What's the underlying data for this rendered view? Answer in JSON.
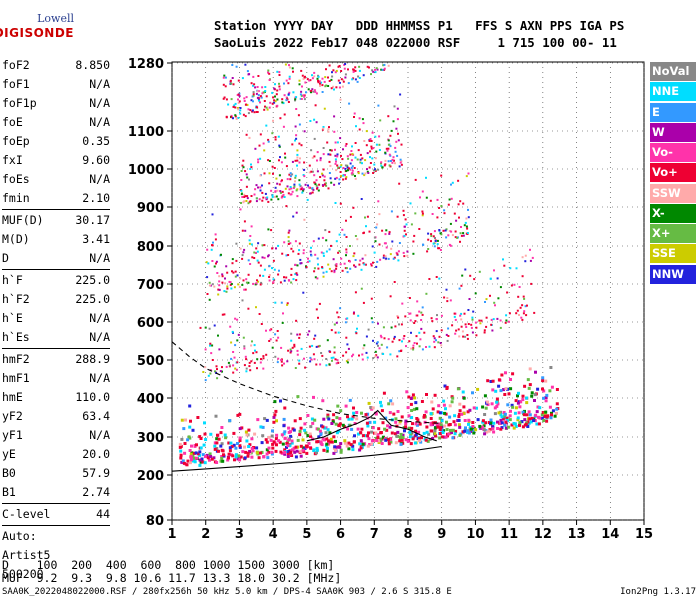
{
  "logo": {
    "line1": "Lowell",
    "line2": "DIGISONDE"
  },
  "header": {
    "labels_line": "Station YYYY DAY   DDD HHMMSS P1   FFS S AXN PPS IGA PS",
    "values_line": "SaoLuis 2022 Feb17 048 022000 RSF     1 715 100 00- 11"
  },
  "params": [
    {
      "name": "foF2",
      "value": "8.850"
    },
    {
      "name": "foF1",
      "value": "N/A"
    },
    {
      "name": "foF1p",
      "value": "N/A"
    },
    {
      "name": "foE",
      "value": "N/A"
    },
    {
      "name": "foEp",
      "value": "0.35"
    },
    {
      "name": "fxI",
      "value": "9.60"
    },
    {
      "name": "foEs",
      "value": "N/A"
    },
    {
      "name": "fmin",
      "value": "2.10"
    },
    {
      "sep": true
    },
    {
      "name": "MUF(D)",
      "value": "30.17"
    },
    {
      "name": "M(D)",
      "value": "3.41"
    },
    {
      "name": "D",
      "value": "N/A"
    },
    {
      "sep": true
    },
    {
      "name": "h`F",
      "value": "225.0"
    },
    {
      "name": "h`F2",
      "value": "225.0"
    },
    {
      "name": "h`E",
      "value": "N/A"
    },
    {
      "name": "h`Es",
      "value": "N/A"
    },
    {
      "sep": true
    },
    {
      "name": "hmF2",
      "value": "288.9"
    },
    {
      "name": "hmF1",
      "value": "N/A"
    },
    {
      "name": "hmE",
      "value": "110.0"
    },
    {
      "name": "yF2",
      "value": "63.4"
    },
    {
      "name": "yF1",
      "value": "N/A"
    },
    {
      "name": "yE",
      "value": "20.0"
    },
    {
      "name": "B0",
      "value": "57.9"
    },
    {
      "name": "B1",
      "value": "2.74"
    },
    {
      "sep": true
    },
    {
      "name": "C-level",
      "value": "44"
    },
    {
      "sep": true
    },
    {
      "text": "Auto:"
    },
    {
      "text": "Artist5"
    },
    {
      "text": "500200"
    }
  ],
  "legend": [
    {
      "label": "NoVal",
      "color": "#888888"
    },
    {
      "label": "NNE",
      "color": "#00ddff"
    },
    {
      "label": "E",
      "color": "#3399ff"
    },
    {
      "label": "W",
      "color": "#aa00aa"
    },
    {
      "label": "Vo-",
      "color": "#ff33aa"
    },
    {
      "label": "Vo+",
      "color": "#ee0033"
    },
    {
      "label": "SSW",
      "color": "#ffaaaa"
    },
    {
      "label": "X-",
      "color": "#008800"
    },
    {
      "label": "X+",
      "color": "#66bb44"
    },
    {
      "label": "SSE",
      "color": "#cccc00"
    },
    {
      "label": "NNW",
      "color": "#2222dd"
    }
  ],
  "footer": {
    "distance_line": "D    100  200  400  600  800 1000 1500 3000 [km]",
    "muf_line": "MUF  9.2  9.3  9.8 10.6 11.7 13.3 18.0 30.2 [MHz]",
    "status_line": "SAA0K_2022048022000.RSF / 280fx256h 50 kHz 5.0 km / DPS-4 SAA0K 903 / 2.6 S 315.8 E",
    "version": "Ion2Png 1.3.17"
  },
  "chart_data": {
    "type": "scatter",
    "x_ticks": [
      1,
      2,
      3,
      4,
      5,
      6,
      7,
      8,
      9,
      10,
      11,
      12,
      13,
      14,
      15
    ],
    "y_ticks": [
      80,
      200,
      300,
      400,
      500,
      600,
      700,
      800,
      900,
      1000,
      1100,
      1280
    ],
    "xlim": [
      1,
      15
    ],
    "ylim": [
      80,
      1280
    ],
    "grid": true,
    "traces": [
      {
        "name": "o-trace",
        "x": [
          1.2,
          2,
          3,
          4,
          5,
          6,
          7,
          8,
          9,
          10,
          11,
          12,
          12.4
        ],
        "y": [
          233,
          240,
          248,
          256,
          263,
          272,
          282,
          293,
          305,
          318,
          332,
          345,
          350
        ]
      },
      {
        "name": "multi-hop-2",
        "x": [
          1.8,
          3,
          4,
          5,
          6,
          7,
          8,
          9,
          10,
          11,
          11.8
        ],
        "y": [
          455,
          468,
          478,
          488,
          497,
          510,
          526,
          545,
          570,
          600,
          630
        ]
      },
      {
        "name": "multi-hop-3",
        "x": [
          2,
          3,
          4,
          5,
          6,
          7,
          8,
          9,
          9.8
        ],
        "y": [
          680,
          693,
          708,
          722,
          738,
          755,
          775,
          800,
          830
        ]
      },
      {
        "name": "multi-hop-4",
        "x": [
          3,
          4,
          5,
          6,
          7,
          7.8
        ],
        "y": [
          910,
          925,
          945,
          970,
          998,
          1020
        ]
      },
      {
        "name": "multi-hop-5",
        "x": [
          2.5,
          3,
          4,
          5,
          6,
          7,
          7.5
        ],
        "y": [
          1130,
          1145,
          1170,
          1195,
          1225,
          1260,
          1280
        ]
      },
      {
        "name": "profile-lower",
        "x": [
          1,
          2,
          3,
          4,
          5,
          6,
          7,
          8,
          9
        ],
        "y": [
          210,
          216,
          222,
          229,
          236,
          244,
          252,
          262,
          275
        ]
      },
      {
        "name": "profile-upper",
        "x": [
          1,
          1.5,
          2,
          3,
          4,
          5,
          6,
          7,
          8,
          9
        ],
        "y": [
          548,
          510,
          478,
          438,
          405,
          380,
          360,
          348,
          340,
          335
        ]
      },
      {
        "name": "foF2-cusp",
        "x": [
          5,
          5.5,
          6,
          6.5,
          6.9,
          7.1,
          7.5,
          8,
          8.5,
          8.85
        ],
        "y": [
          290,
          300,
          320,
          335,
          352,
          368,
          330,
          320,
          300,
          290
        ]
      }
    ]
  }
}
